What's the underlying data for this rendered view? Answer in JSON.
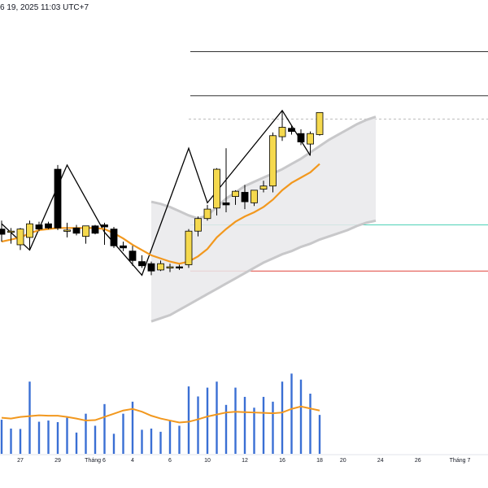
{
  "header": {
    "timestamp": "6 19, 2025 11:03 UTC+7"
  },
  "chart_data": {
    "type": "candlestick",
    "x_ticks": [
      "27",
      "29",
      "Tháng 6",
      "4",
      "6",
      "10",
      "12",
      "16",
      "18",
      "20",
      "24",
      "26",
      "Tháng 7"
    ],
    "colors": {
      "up_candle": "#f5d94e",
      "down_candle": "#000000",
      "ma_line": "#f2981e",
      "volume_bar": "#3a6fd4",
      "volume_ma": "#f2981e",
      "channel_fill": "#e9e9eb",
      "zigzag": "#000000",
      "teal_level": "#4fd1b7",
      "red_level": "#e0443a",
      "black_level": "#333333"
    },
    "candles": [
      {
        "o": 100.5,
        "h": 101.3,
        "l": 99.3,
        "c": 100.0
      },
      {
        "o": 100.2,
        "h": 100.6,
        "l": 99.1,
        "c": 100.3
      },
      {
        "o": 99.0,
        "h": 100.6,
        "l": 98.5,
        "c": 100.5
      },
      {
        "o": 99.7,
        "h": 101.3,
        "l": 98.5,
        "c": 101.0
      },
      {
        "o": 100.9,
        "h": 101.2,
        "l": 100.3,
        "c": 100.5
      },
      {
        "o": 101.0,
        "h": 101.2,
        "l": 100.5,
        "c": 100.6
      },
      {
        "o": 106.2,
        "h": 106.6,
        "l": 100.4,
        "c": 100.6
      },
      {
        "o": 100.4,
        "h": 101.1,
        "l": 99.7,
        "c": 100.4
      },
      {
        "o": 100.6,
        "h": 100.9,
        "l": 99.9,
        "c": 100.1
      },
      {
        "o": 99.8,
        "h": 100.8,
        "l": 99.1,
        "c": 100.8
      },
      {
        "o": 100.8,
        "h": 100.9,
        "l": 100.0,
        "c": 100.1
      },
      {
        "o": 100.9,
        "h": 101.1,
        "l": 99.0,
        "c": 100.7
      },
      {
        "o": 100.5,
        "h": 100.7,
        "l": 98.7,
        "c": 98.9
      },
      {
        "o": 98.9,
        "h": 99.3,
        "l": 98.4,
        "c": 98.7
      },
      {
        "o": 98.4,
        "h": 98.9,
        "l": 97.0,
        "c": 97.5
      },
      {
        "o": 97.4,
        "h": 98.0,
        "l": 96.8,
        "c": 97.0
      },
      {
        "o": 97.2,
        "h": 97.4,
        "l": 96.1,
        "c": 96.5
      },
      {
        "o": 96.6,
        "h": 97.5,
        "l": 96.5,
        "c": 97.2
      },
      {
        "o": 96.8,
        "h": 97.2,
        "l": 96.4,
        "c": 96.9
      },
      {
        "o": 96.9,
        "h": 97.1,
        "l": 96.6,
        "c": 96.8
      },
      {
        "o": 97.1,
        "h": 100.5,
        "l": 96.8,
        "c": 100.3
      },
      {
        "o": 100.3,
        "h": 101.7,
        "l": 99.8,
        "c": 101.5
      },
      {
        "o": 101.5,
        "h": 102.8,
        "l": 101.3,
        "c": 102.4
      },
      {
        "o": 102.5,
        "h": 106.3,
        "l": 101.8,
        "c": 106.2
      },
      {
        "o": 103.0,
        "h": 108.2,
        "l": 102.1,
        "c": 102.8
      },
      {
        "o": 103.6,
        "h": 104.2,
        "l": 102.8,
        "c": 104.1
      },
      {
        "o": 104.0,
        "h": 104.7,
        "l": 102.4,
        "c": 103.1
      },
      {
        "o": 103.0,
        "h": 104.2,
        "l": 102.7,
        "c": 104.2
      },
      {
        "o": 104.3,
        "h": 105.1,
        "l": 104.0,
        "c": 104.6
      },
      {
        "o": 104.6,
        "h": 109.7,
        "l": 104.0,
        "c": 109.4
      },
      {
        "o": 109.3,
        "h": 111.8,
        "l": 108.9,
        "c": 110.2
      },
      {
        "o": 110.1,
        "h": 110.4,
        "l": 109.5,
        "c": 109.8
      },
      {
        "o": 109.6,
        "h": 110.0,
        "l": 108.5,
        "c": 108.8
      },
      {
        "o": 108.6,
        "h": 109.8,
        "l": 107.5,
        "c": 109.6
      },
      {
        "o": 109.5,
        "h": 111.6,
        "l": 109.4,
        "c": 111.6
      }
    ],
    "ma": [
      99.3,
      99.5,
      99.7,
      100.1,
      100.4,
      100.5,
      100.6,
      100.6,
      100.6,
      100.6,
      100.6,
      100.5,
      100.1,
      99.6,
      99.0,
      98.5,
      98.0,
      97.7,
      97.4,
      97.2,
      97.4,
      97.9,
      98.6,
      99.7,
      100.5,
      101.2,
      101.7,
      102.1,
      102.6,
      103.3,
      104.2,
      104.9,
      105.4,
      105.9,
      106.7
    ],
    "channel": {
      "start_index": 16,
      "end_index": 40,
      "upper": [
        103.1,
        102.9,
        102.6,
        102.2,
        101.8,
        101.5,
        101.8,
        102.6,
        103.4,
        104.0,
        104.6,
        105.0,
        105.4,
        105.8,
        106.2,
        106.7,
        107.2,
        107.8,
        108.4,
        109.0,
        109.5,
        110.0,
        110.5,
        110.9,
        111.2
      ],
      "lower": [
        91.7,
        92.0,
        92.3,
        92.8,
        93.3,
        93.8,
        94.3,
        94.8,
        95.3,
        95.8,
        96.3,
        96.8,
        97.3,
        97.7,
        98.1,
        98.4,
        98.8,
        99.1,
        99.5,
        99.8,
        100.1,
        100.4,
        100.8,
        101.1,
        101.3
      ]
    },
    "zigzag": [
      {
        "i": 0,
        "v": 101.0
      },
      {
        "i": 3,
        "v": 98.5
      },
      {
        "i": 7,
        "v": 106.6
      },
      {
        "i": 11,
        "v": 100.2
      },
      {
        "i": 15,
        "v": 96.1
      },
      {
        "i": 20,
        "v": 108.2
      },
      {
        "i": 22,
        "v": 103.0
      },
      {
        "i": 30,
        "v": 111.8
      },
      {
        "i": 33,
        "v": 107.5
      }
    ],
    "levels": [
      {
        "value": 117.4,
        "color": "#333333",
        "start_index": 20
      },
      {
        "value": 113.2,
        "color": "#333333",
        "start_index": 20
      },
      {
        "value": 100.9,
        "color": "#4fd1b7",
        "start_index": 20
      },
      {
        "value": 96.5,
        "color": "#e0443a",
        "start_index": 20
      }
    ],
    "volume": [
      85,
      63,
      62,
      180,
      80,
      83,
      79,
      90,
      53,
      100,
      70,
      124,
      50,
      100,
      130,
      60,
      63,
      55,
      83,
      70,
      168,
      143,
      165,
      180,
      122,
      165,
      142,
      115,
      142,
      130,
      180,
      200,
      185,
      150,
      97
    ],
    "volume_ma": [
      90,
      88,
      92,
      94,
      96,
      95,
      95,
      92,
      88,
      83,
      84,
      92,
      100,
      108,
      112,
      105,
      95,
      88,
      83,
      78,
      80,
      86,
      93,
      98,
      103,
      105,
      104,
      103,
      102,
      101,
      103,
      112,
      118,
      113,
      108
    ],
    "price_range": [
      89,
      120
    ],
    "volume_range": [
      0,
      300
    ]
  }
}
